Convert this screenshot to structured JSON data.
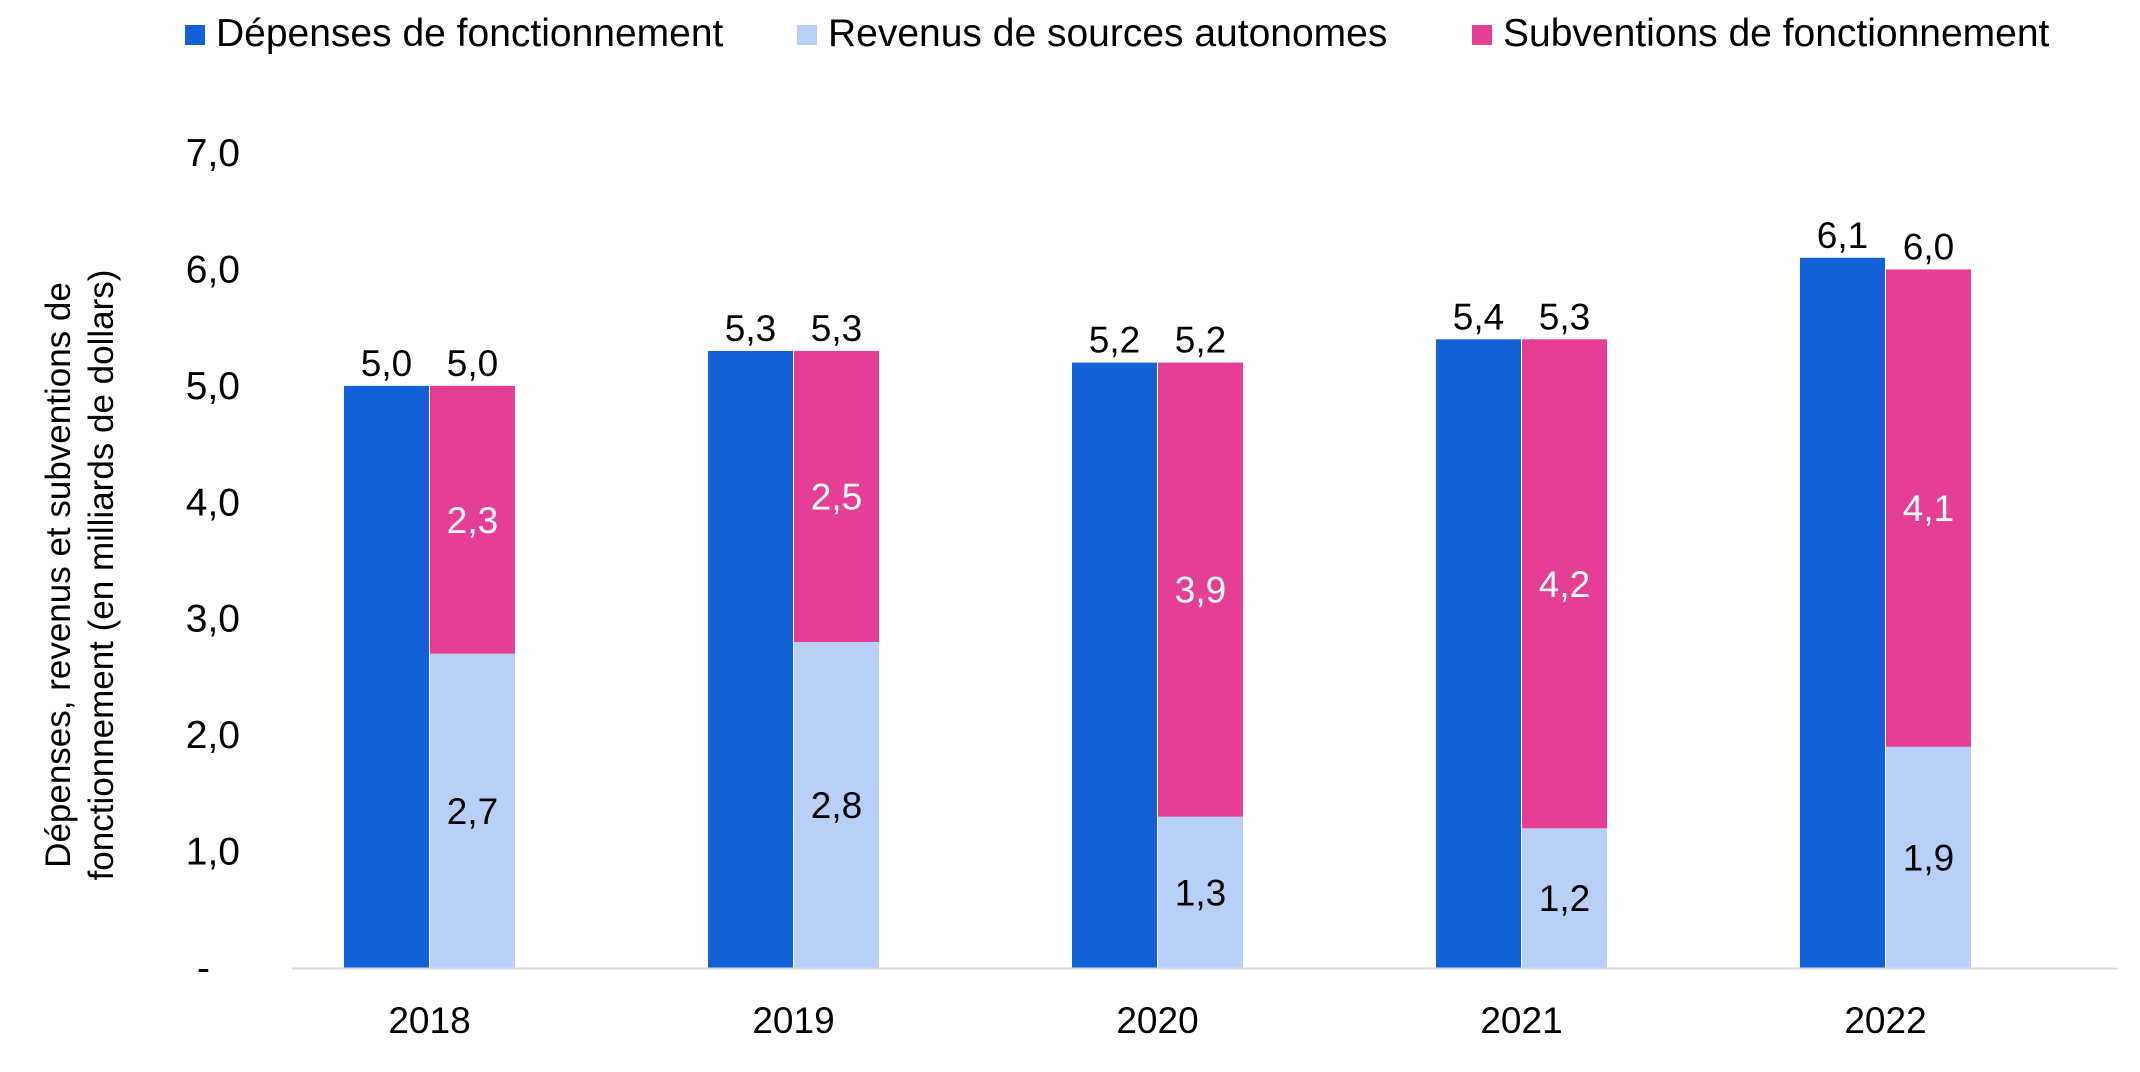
{
  "chart_data": {
    "type": "bar",
    "stacked_second_bar": true,
    "categories": [
      "2018",
      "2019",
      "2020",
      "2021",
      "2022"
    ],
    "series": [
      {
        "name": "Dépenses de fonctionnement",
        "color": "#1261D8",
        "values": [
          5.0,
          5.3,
          5.2,
          5.4,
          6.1
        ],
        "labels": [
          "5,0",
          "5,3",
          "5,2",
          "5,4",
          "6,1"
        ]
      },
      {
        "name": "Revenus de sources autonomes",
        "color": "#B8D0F8",
        "values": [
          2.7,
          2.8,
          1.3,
          1.2,
          1.9
        ],
        "labels": [
          "2,7",
          "2,8",
          "1,3",
          "1,2",
          "1,9"
        ]
      },
      {
        "name": "Subventions de fonctionnement",
        "color": "#E43F95",
        "values": [
          2.3,
          2.5,
          3.9,
          4.2,
          4.1
        ],
        "labels": [
          "2,3",
          "2,5",
          "3,9",
          "4,2",
          "4,1"
        ]
      }
    ],
    "stack_totals": [
      "5,0",
      "5,3",
      "5,2",
      "5,3",
      "6,0"
    ],
    "ylabel_lines": [
      "Dépenses, revenus et subventions de",
      "fonctionnement (en milliards de dollars)"
    ],
    "xlabel": "",
    "ylim": [
      0,
      7
    ],
    "yticks": [
      0,
      1,
      2,
      3,
      4,
      5,
      6,
      7
    ],
    "ytick_labels": [
      "-",
      "1,0",
      "2,0",
      "3,0",
      "4,0",
      "5,0",
      "6,0",
      "7,0"
    ],
    "grid": false,
    "legend_position": "top"
  }
}
